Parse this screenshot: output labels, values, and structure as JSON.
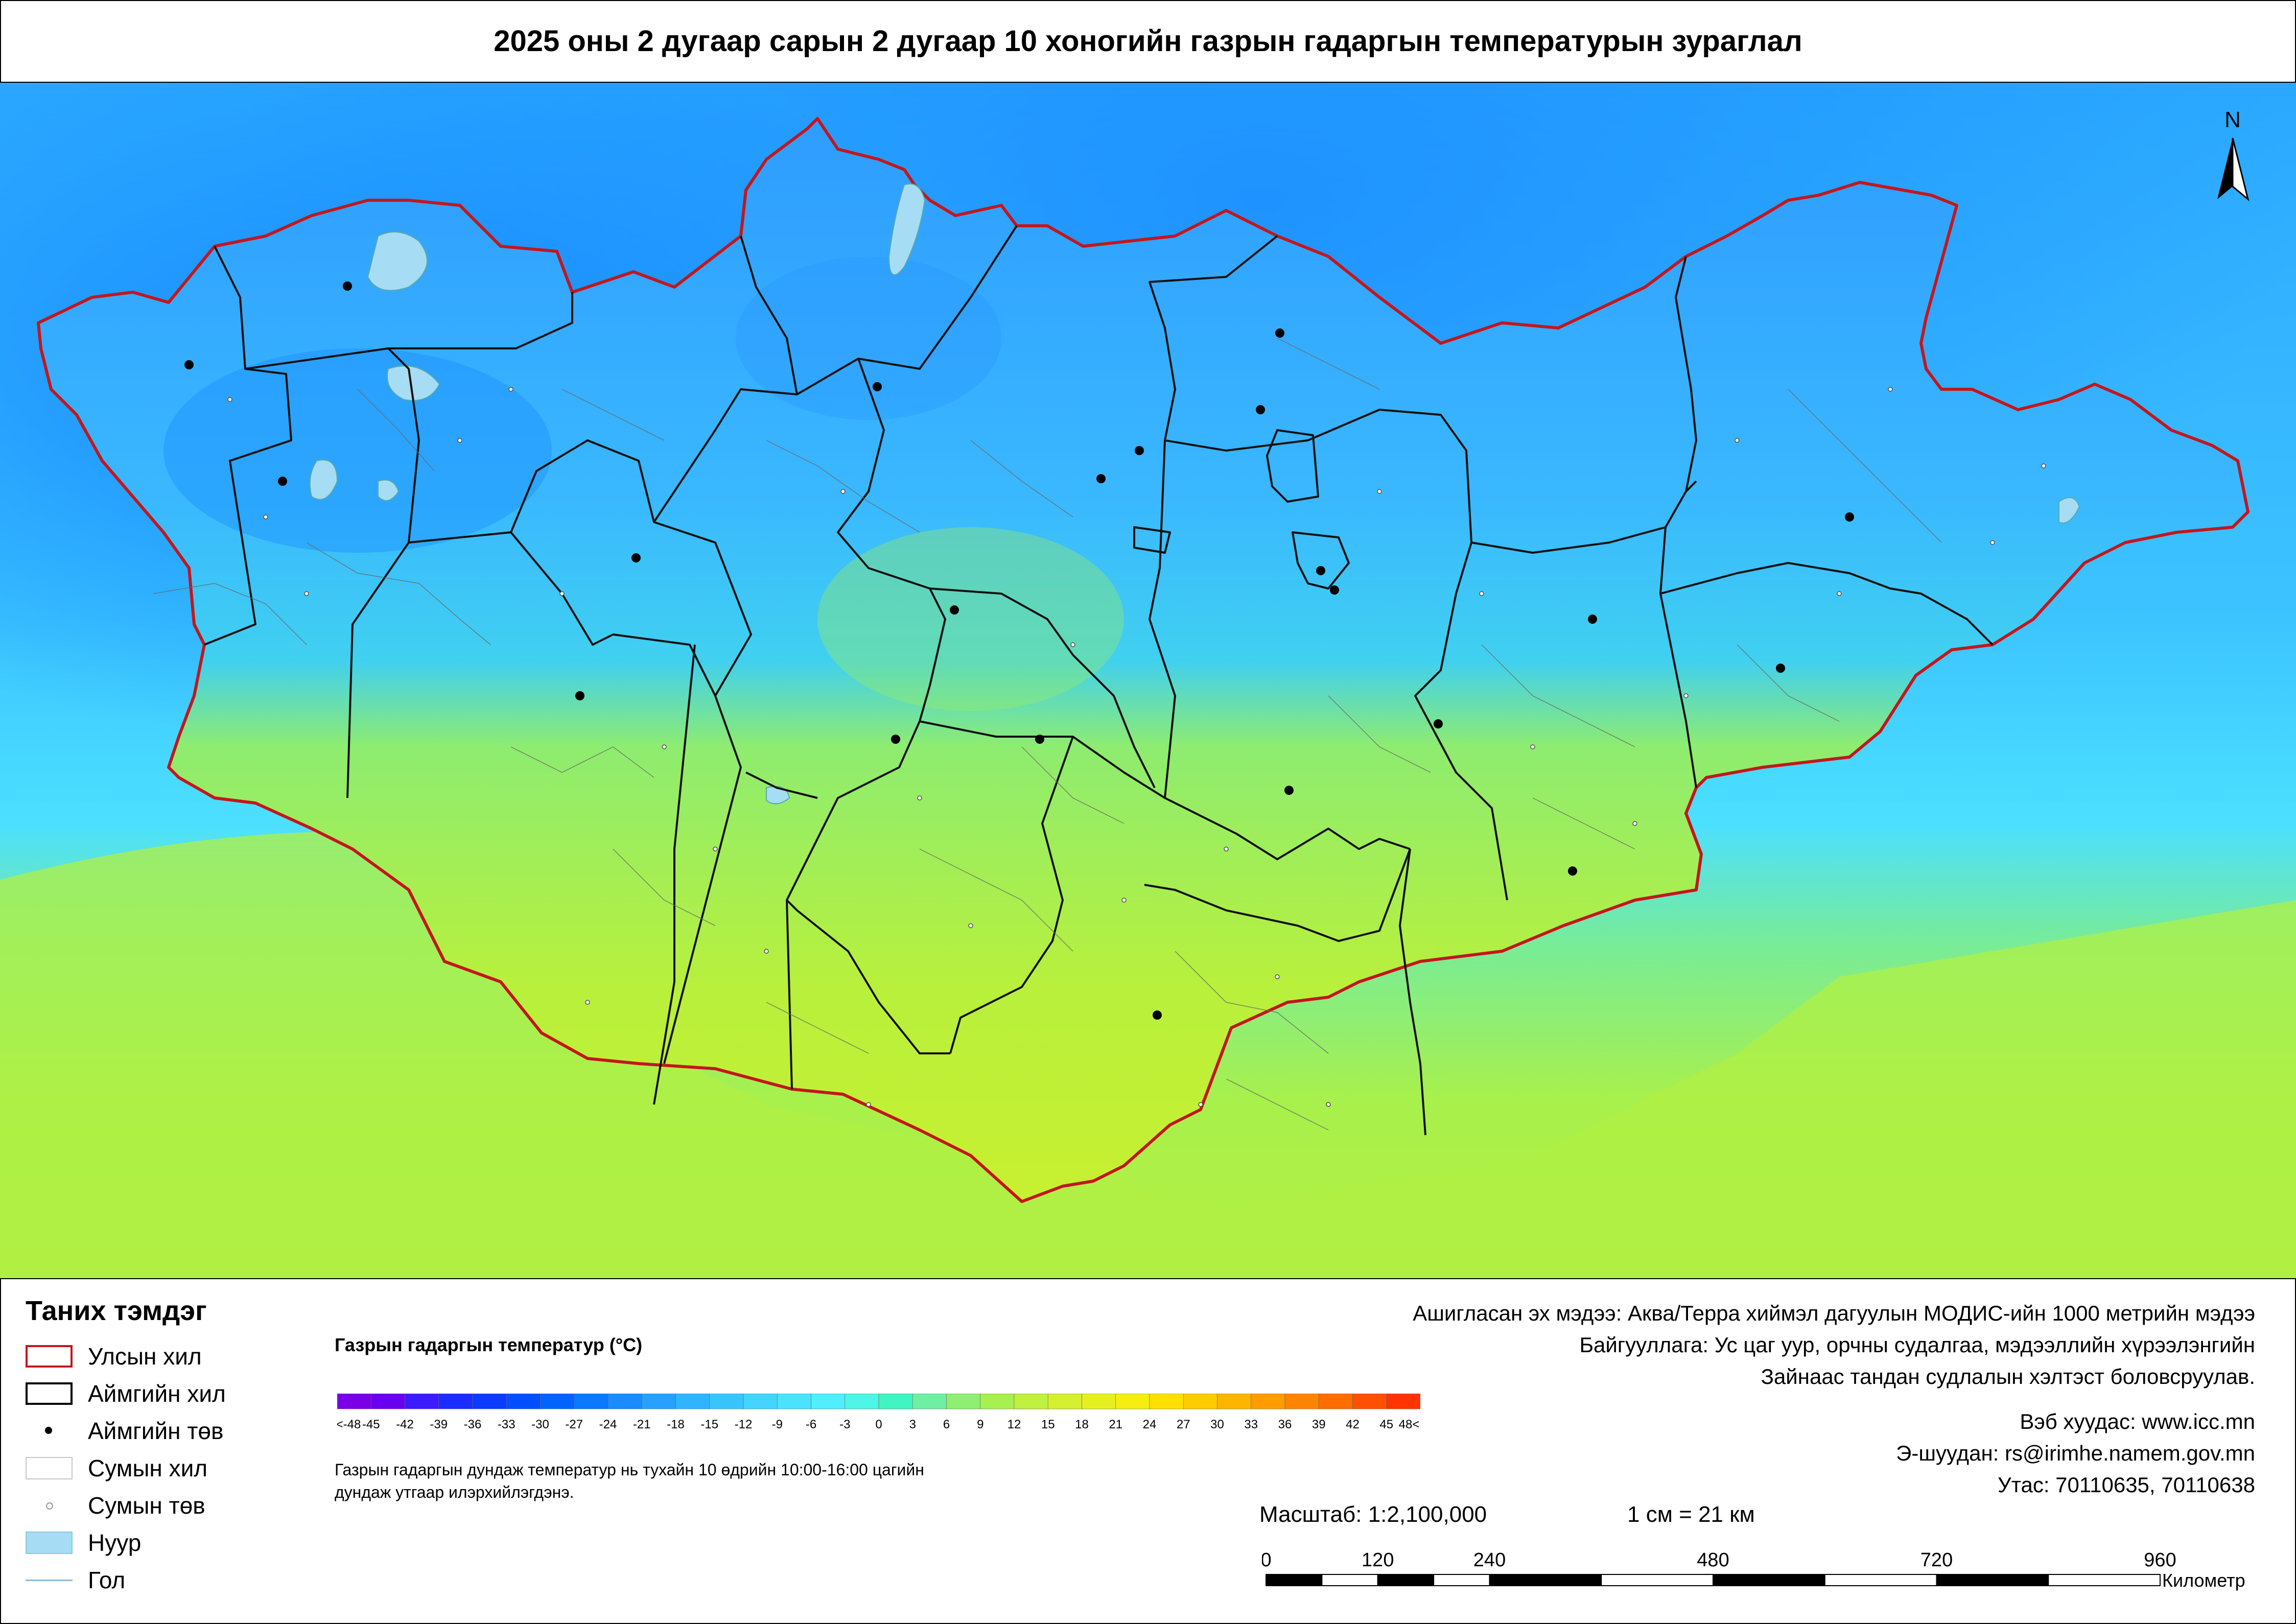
{
  "title": "2025 оны 2 дугаар сарын 2 дугаар 10 хоногийн газрын гадаргын температурын зураглал",
  "north_label": "N",
  "legend": {
    "title": "Таних тэмдэг",
    "items": [
      {
        "label": "Улсын хил",
        "symbol": "state-border"
      },
      {
        "label": "Аймгийн хил",
        "symbol": "province-border"
      },
      {
        "label": "Аймгийн төв",
        "symbol": "province-center"
      },
      {
        "label": "Сумын хил",
        "symbol": "soum-border"
      },
      {
        "label": "Сумын төв",
        "symbol": "soum-center"
      },
      {
        "label": "Нуур",
        "symbol": "lake"
      },
      {
        "label": "Гол",
        "symbol": "river"
      }
    ]
  },
  "color_ramp": {
    "title": "Газрын гадаргын температур (°C)",
    "labels": [
      "<-48",
      "-45",
      "-42",
      "-39",
      "-36",
      "-33",
      "-30",
      "-27",
      "-24",
      "-21",
      "-18",
      "-15",
      "-12",
      "-9",
      "-6",
      "-3",
      "0",
      "3",
      "6",
      "9",
      "12",
      "15",
      "18",
      "21",
      "24",
      "27",
      "30",
      "33",
      "36",
      "39",
      "42",
      "45",
      "48<"
    ],
    "colors": [
      "#7a00e6",
      "#6a00f0",
      "#3c1cff",
      "#1a2cff",
      "#0a3cff",
      "#0050ff",
      "#0064ff",
      "#0a78ff",
      "#1a8cff",
      "#28a0ff",
      "#30b4ff",
      "#3ac4ff",
      "#44d4ff",
      "#4ce2ff",
      "#50eeff",
      "#4ff5e6",
      "#40f5c0",
      "#6ff0a0",
      "#8ef070",
      "#a6f050",
      "#c0f040",
      "#d4f030",
      "#e6f020",
      "#f5ee10",
      "#ffe000",
      "#ffcc00",
      "#ffb400",
      "#ff9c00",
      "#ff8400",
      "#ff6c00",
      "#ff5000",
      "#ff3400"
    ],
    "note": "Газрын гадаргын дундаж температур нь тухайн 10 өдрийн 10:00-16:00 цагийн дундаж утгаар илэрхийлэгдэнэ."
  },
  "source": {
    "line1": "Ашигласан эх мэдээ: Аква/Терра хиймэл дагуулын МОДИС-ийн 1000 метрийн мэдээ",
    "line2": "Байгууллага: Ус цаг уур, орчны судалгаа, мэдээллийн хүрээлэнгийн",
    "line3": "Зайнаас тандан судлалын хэлтэст боловсруулав."
  },
  "contact": {
    "web": "Вэб хуудас: www.icc.mn",
    "email": "Э-шуудан: rs@irimhe.namem.gov.mn",
    "phone": "Утас: 70110635, 70110638"
  },
  "scale": {
    "ratio": "Масштаб: 1:2,100,000",
    "cm": "1 см = 21 км",
    "ticks": [
      "0",
      "120",
      "240",
      "480",
      "720",
      "960"
    ],
    "unit": "Километр"
  }
}
